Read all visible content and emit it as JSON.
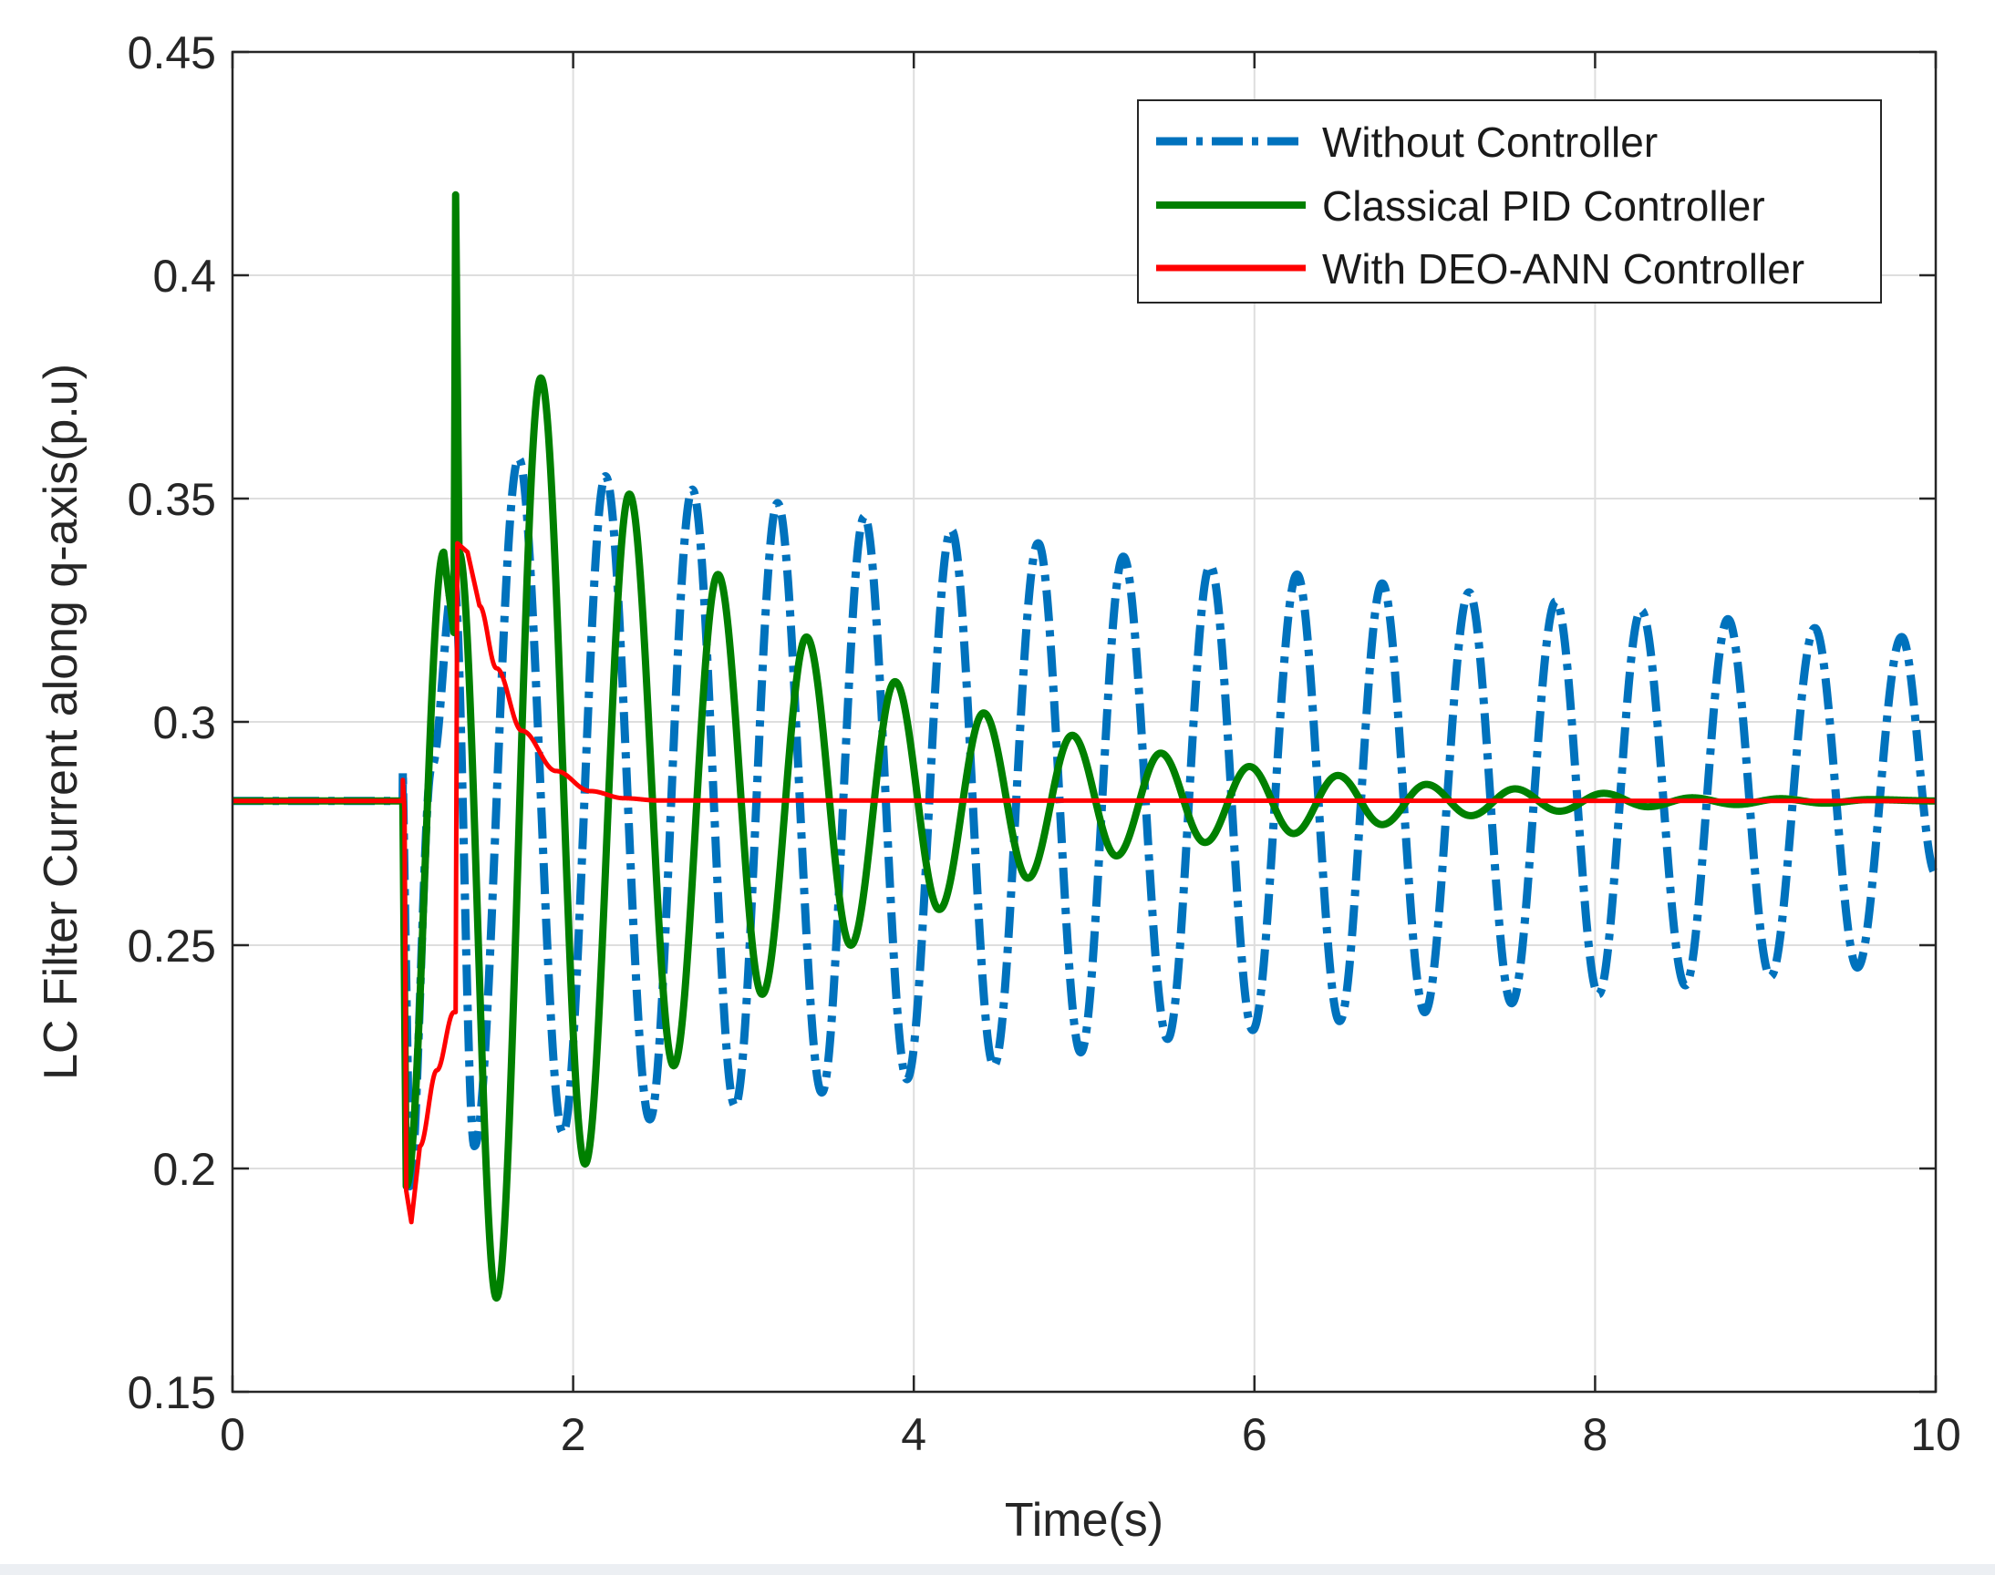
{
  "chart_data": {
    "type": "line",
    "title": "",
    "xlabel": "Time(s)",
    "ylabel": "LC Filter Current along q-axis(p.u)",
    "xlim": [
      0,
      10
    ],
    "ylim": [
      0.15,
      0.45
    ],
    "xticks": [
      0,
      2,
      4,
      6,
      8,
      10
    ],
    "yticks": [
      0.15,
      0.2,
      0.25,
      0.3,
      0.35,
      0.4,
      0.45
    ],
    "xtick_labels": [
      "0",
      "2",
      "4",
      "6",
      "8",
      "10"
    ],
    "ytick_labels": [
      "0.15",
      "0.2",
      "0.25",
      "0.3",
      "0.35",
      "0.4",
      "0.45"
    ],
    "grid": true,
    "legend_position": "top-right",
    "steady_state": 0.2823,
    "disturbance_time": 1.0,
    "series": [
      {
        "name": "Without Controller",
        "color": "#0072BD",
        "style": "dash-dot",
        "oscillation_period": 0.506,
        "points": [
          [
            0,
            0.2823
          ],
          [
            0.999,
            0.2823
          ],
          [
            1.0,
            0.289
          ],
          [
            1.04,
            0.196
          ],
          [
            1.17,
            0.29
          ],
          [
            1.3,
            0.332
          ],
          [
            1.42,
            0.205
          ],
          [
            1.68,
            0.359
          ],
          [
            1.94,
            0.208
          ],
          [
            2.19,
            0.355
          ],
          [
            2.45,
            0.211
          ],
          [
            2.7,
            0.352
          ],
          [
            2.95,
            0.214
          ],
          [
            3.2,
            0.349
          ],
          [
            3.46,
            0.217
          ],
          [
            3.71,
            0.346
          ],
          [
            3.96,
            0.22
          ],
          [
            4.22,
            0.343
          ],
          [
            4.47,
            0.223
          ],
          [
            4.73,
            0.34
          ],
          [
            4.98,
            0.226
          ],
          [
            5.23,
            0.337
          ],
          [
            5.49,
            0.229
          ],
          [
            5.74,
            0.335
          ],
          [
            5.99,
            0.231
          ],
          [
            6.25,
            0.333
          ],
          [
            6.5,
            0.233
          ],
          [
            6.75,
            0.331
          ],
          [
            7.0,
            0.235
          ],
          [
            7.26,
            0.329
          ],
          [
            7.51,
            0.237
          ],
          [
            7.77,
            0.327
          ],
          [
            8.02,
            0.239
          ],
          [
            8.27,
            0.325
          ],
          [
            8.53,
            0.241
          ],
          [
            8.78,
            0.323
          ],
          [
            9.03,
            0.243
          ],
          [
            9.29,
            0.321
          ],
          [
            9.54,
            0.245
          ],
          [
            9.8,
            0.319
          ],
          [
            10.0,
            0.266
          ]
        ]
      },
      {
        "name": "Classical PID Controller",
        "color": "#008000",
        "style": "solid",
        "oscillation_period": 0.52,
        "points": [
          [
            0,
            0.2823
          ],
          [
            0.999,
            0.2823
          ],
          [
            1.0,
            0.2823
          ],
          [
            1.02,
            0.196
          ],
          [
            1.24,
            0.338
          ],
          [
            1.3,
            0.32
          ],
          [
            1.31,
            0.418
          ],
          [
            1.33,
            0.338
          ],
          [
            1.55,
            0.171
          ],
          [
            1.81,
            0.377
          ],
          [
            2.07,
            0.201
          ],
          [
            2.33,
            0.351
          ],
          [
            2.59,
            0.223
          ],
          [
            2.85,
            0.333
          ],
          [
            3.11,
            0.239
          ],
          [
            3.37,
            0.319
          ],
          [
            3.63,
            0.25
          ],
          [
            3.89,
            0.309
          ],
          [
            4.15,
            0.258
          ],
          [
            4.41,
            0.302
          ],
          [
            4.67,
            0.265
          ],
          [
            4.93,
            0.297
          ],
          [
            5.19,
            0.27
          ],
          [
            5.45,
            0.293
          ],
          [
            5.71,
            0.273
          ],
          [
            5.97,
            0.29
          ],
          [
            6.23,
            0.275
          ],
          [
            6.49,
            0.288
          ],
          [
            6.75,
            0.277
          ],
          [
            7.01,
            0.286
          ],
          [
            7.27,
            0.279
          ],
          [
            7.53,
            0.285
          ],
          [
            7.79,
            0.28
          ],
          [
            8.05,
            0.284
          ],
          [
            8.31,
            0.281
          ],
          [
            8.57,
            0.283
          ],
          [
            8.83,
            0.2815
          ],
          [
            9.09,
            0.2828
          ],
          [
            9.35,
            0.2818
          ],
          [
            9.61,
            0.2826
          ],
          [
            10.0,
            0.2823
          ]
        ]
      },
      {
        "name": "With DEO-ANN Controller",
        "color": "#FF0000",
        "style": "solid",
        "points": [
          [
            0,
            0.2823
          ],
          [
            0.999,
            0.2823
          ],
          [
            1.0,
            0.2823
          ],
          [
            1.0,
            0.287
          ],
          [
            1.01,
            0.28
          ],
          [
            1.02,
            0.195
          ],
          [
            1.05,
            0.188
          ],
          [
            1.1,
            0.205
          ],
          [
            1.2,
            0.222
          ],
          [
            1.3,
            0.235
          ],
          [
            1.31,
            0.235
          ],
          [
            1.32,
            0.34
          ],
          [
            1.38,
            0.338
          ],
          [
            1.45,
            0.326
          ],
          [
            1.55,
            0.312
          ],
          [
            1.7,
            0.298
          ],
          [
            1.9,
            0.289
          ],
          [
            2.1,
            0.2845
          ],
          [
            2.3,
            0.2829
          ],
          [
            2.5,
            0.2824
          ],
          [
            10.0,
            0.2823
          ]
        ]
      }
    ]
  }
}
